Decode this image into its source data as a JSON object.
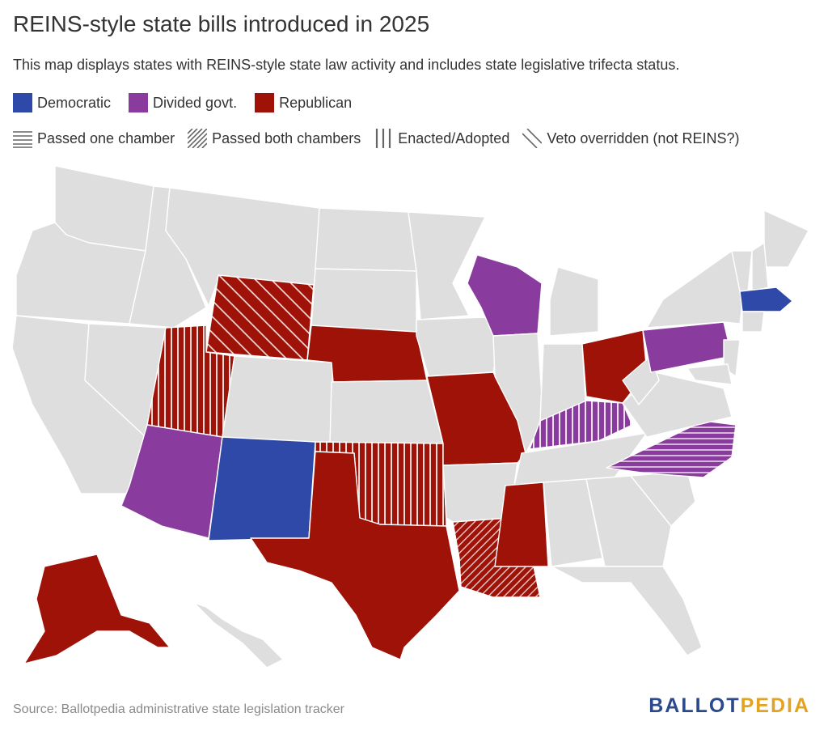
{
  "title": "REINS-style state bills introduced in 2025",
  "subtitle": "This map displays states with REINS-style state law activity and includes state legislative trifecta status.",
  "legend_party": [
    {
      "label": "Democratic",
      "color": "#2f49a8"
    },
    {
      "label": "Divided govt.",
      "color": "#8a3b9e"
    },
    {
      "label": "Republican",
      "color": "#9e1208"
    }
  ],
  "legend_status": [
    {
      "label": "Passed one chamber",
      "pattern": "horizontal"
    },
    {
      "label": "Passed both chambers",
      "pattern": "diagonal-dense"
    },
    {
      "label": "Enacted/Adopted",
      "pattern": "vertical"
    },
    {
      "label": "Veto overridden (not REINS?)",
      "pattern": "diagonal-sparse"
    }
  ],
  "colors": {
    "base": "#dedede",
    "border": "#ffffff"
  },
  "states": [
    {
      "abbr": "WA",
      "party": null,
      "status": null
    },
    {
      "abbr": "OR",
      "party": null,
      "status": null
    },
    {
      "abbr": "CA",
      "party": null,
      "status": null
    },
    {
      "abbr": "ID",
      "party": null,
      "status": null
    },
    {
      "abbr": "NV",
      "party": null,
      "status": null
    },
    {
      "abbr": "MT",
      "party": null,
      "status": null
    },
    {
      "abbr": "WY",
      "party": "Republican",
      "status": "diagonal-sparse"
    },
    {
      "abbr": "UT",
      "party": "Republican",
      "status": "vertical"
    },
    {
      "abbr": "CO",
      "party": null,
      "status": null
    },
    {
      "abbr": "AZ",
      "party": "Divided govt.",
      "status": null
    },
    {
      "abbr": "NM",
      "party": "Democratic",
      "status": null
    },
    {
      "abbr": "ND",
      "party": null,
      "status": null
    },
    {
      "abbr": "SD",
      "party": null,
      "status": null
    },
    {
      "abbr": "NE",
      "party": "Republican",
      "status": null
    },
    {
      "abbr": "KS",
      "party": null,
      "status": null
    },
    {
      "abbr": "OK",
      "party": "Republican",
      "status": "vertical"
    },
    {
      "abbr": "TX",
      "party": "Republican",
      "status": null
    },
    {
      "abbr": "MN",
      "party": null,
      "status": null
    },
    {
      "abbr": "IA",
      "party": null,
      "status": null
    },
    {
      "abbr": "MO",
      "party": "Republican",
      "status": null
    },
    {
      "abbr": "AR",
      "party": null,
      "status": null
    },
    {
      "abbr": "LA",
      "party": "Republican",
      "status": "diagonal-dense"
    },
    {
      "abbr": "WI",
      "party": "Divided govt.",
      "status": null
    },
    {
      "abbr": "IL",
      "party": null,
      "status": null
    },
    {
      "abbr": "MI",
      "party": null,
      "status": null
    },
    {
      "abbr": "IN",
      "party": null,
      "status": null
    },
    {
      "abbr": "OH",
      "party": "Republican",
      "status": null
    },
    {
      "abbr": "KY",
      "party": "Divided govt.",
      "status": "vertical"
    },
    {
      "abbr": "TN",
      "party": null,
      "status": null
    },
    {
      "abbr": "MS",
      "party": "Republican",
      "status": null
    },
    {
      "abbr": "AL",
      "party": null,
      "status": null
    },
    {
      "abbr": "GA",
      "party": null,
      "status": null
    },
    {
      "abbr": "FL",
      "party": null,
      "status": null
    },
    {
      "abbr": "SC",
      "party": null,
      "status": null
    },
    {
      "abbr": "NC",
      "party": "Divided govt.",
      "status": "horizontal"
    },
    {
      "abbr": "VA",
      "party": null,
      "status": null
    },
    {
      "abbr": "WV",
      "party": null,
      "status": null
    },
    {
      "abbr": "PA",
      "party": "Divided govt.",
      "status": null
    },
    {
      "abbr": "NY",
      "party": null,
      "status": null
    },
    {
      "abbr": "NJ",
      "party": null,
      "status": null
    },
    {
      "abbr": "MD",
      "party": null,
      "status": null
    },
    {
      "abbr": "ME",
      "party": null,
      "status": null
    },
    {
      "abbr": "VT",
      "party": null,
      "status": null
    },
    {
      "abbr": "NH",
      "party": null,
      "status": null
    },
    {
      "abbr": "MA",
      "party": "Democratic",
      "status": null
    },
    {
      "abbr": "CT",
      "party": null,
      "status": null
    },
    {
      "abbr": "AK",
      "party": "Republican",
      "status": null
    },
    {
      "abbr": "HI",
      "party": null,
      "status": null
    }
  ],
  "source": "Source: Ballotpedia administrative state legislation tracker",
  "logo": {
    "part1": "BALLOT",
    "part2": "PEDIA"
  }
}
